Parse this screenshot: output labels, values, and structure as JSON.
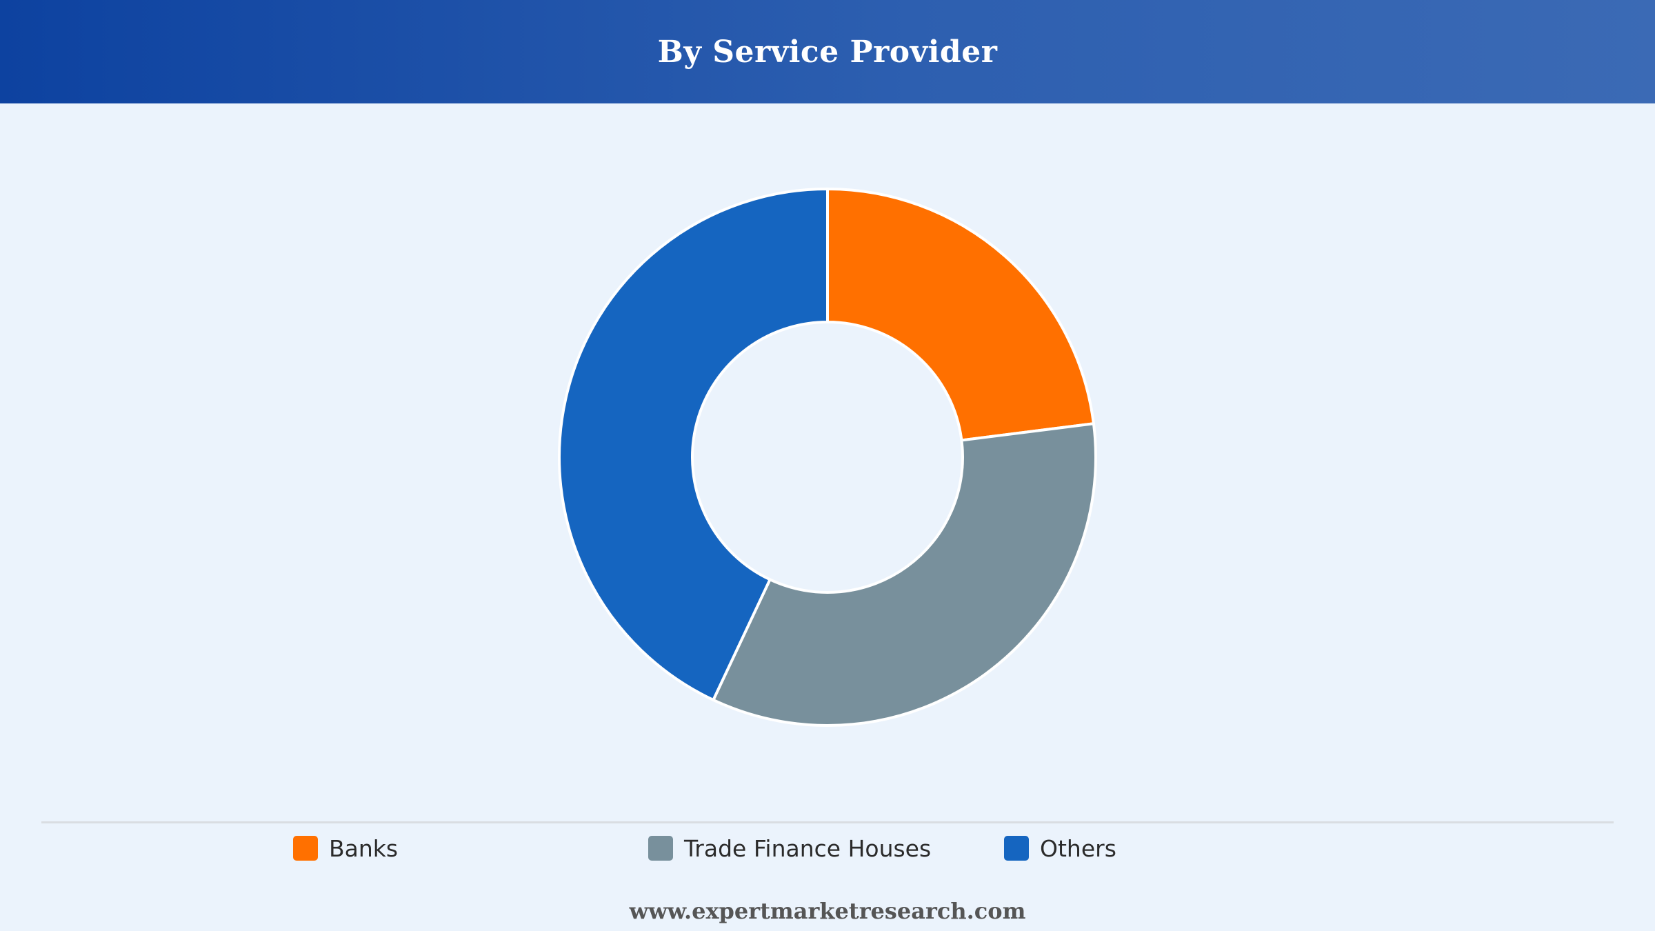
{
  "header": {
    "title": "By Service Provider"
  },
  "chart_data": {
    "type": "pie",
    "variant": "donut",
    "categories": [
      "Banks",
      "Trade Finance Houses",
      "Others"
    ],
    "values": [
      23,
      34,
      43
    ],
    "colors": [
      "#ff7000",
      "#78909c",
      "#1565c0"
    ],
    "legend_position": "bottom",
    "start_angle_deg": 0
  },
  "legend": {
    "items": [
      {
        "label": "Banks",
        "color": "#ff7000"
      },
      {
        "label": "Trade Finance Houses",
        "color": "#78909c"
      },
      {
        "label": "Others",
        "color": "#1565c0"
      }
    ]
  },
  "footer": {
    "source": "www.expertmarketresearch.com"
  }
}
